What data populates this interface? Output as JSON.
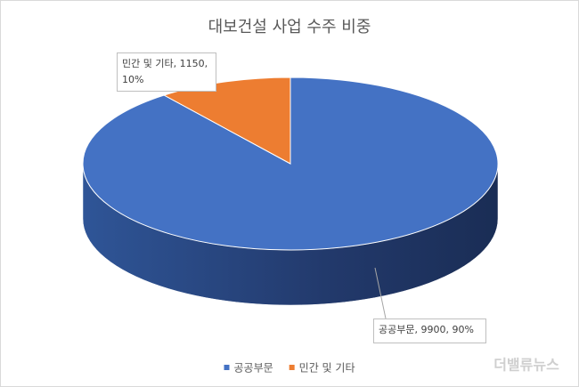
{
  "chart_data": {
    "type": "pie3d",
    "title": "대보건설 사업 수주 비중",
    "categories": [
      "공공부문",
      "민간 및 기타"
    ],
    "values": [
      9900,
      1150
    ],
    "value_labels": [
      "공공부문, 9900, 90%",
      "민간 및 기타, 1150, 10%"
    ],
    "colors": [
      "#4472c4",
      "#ed7d31"
    ],
    "legend": "bottom",
    "watermark": "더밸류뉴스"
  }
}
